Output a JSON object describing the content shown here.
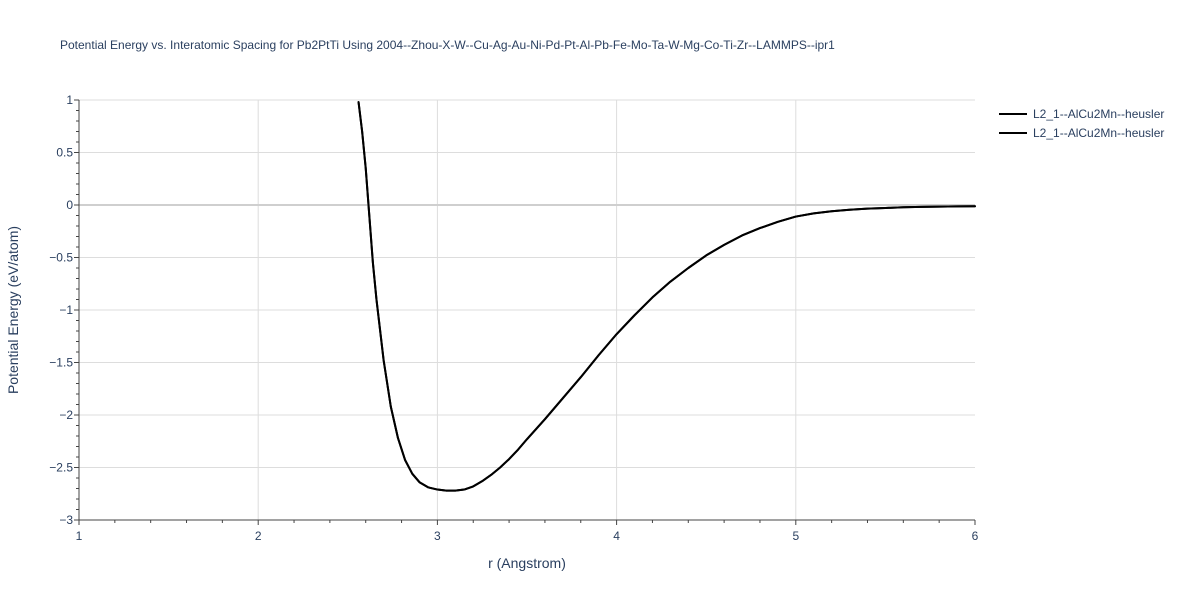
{
  "chart_data": {
    "type": "line",
    "title": "Potential Energy vs. Interatomic Spacing for Pb2PtTi Using 2004--Zhou-X-W--Cu-Ag-Au-Ni-Pd-Pt-Al-Pb-Fe-Mo-Ta-W-Mg-Co-Ti-Zr--LAMMPS--ipr1",
    "xlabel": "r (Angstrom)",
    "ylabel": "Potential Energy (eV/atom)",
    "xlim": [
      1,
      6
    ],
    "ylim": [
      -3,
      1
    ],
    "x_ticks": [
      1,
      2,
      3,
      4,
      5,
      6
    ],
    "y_ticks": [
      -3,
      -2.5,
      -2,
      -1.5,
      -1,
      -0.5,
      0,
      0.5,
      1
    ],
    "x_tick_labels": [
      "1",
      "2",
      "3",
      "4",
      "5",
      "6"
    ],
    "y_tick_labels": [
      "−3",
      "−2.5",
      "−2",
      "−1.5",
      "−1",
      "−0.5",
      "0",
      "0.5",
      "1"
    ],
    "grid": true,
    "legend_position": "top-right",
    "series": [
      {
        "name": "L2_1--AlCu2Mn--heusler",
        "color": "#000000",
        "x": [
          2.56,
          2.58,
          2.6,
          2.62,
          2.64,
          2.66,
          2.7,
          2.74,
          2.78,
          2.82,
          2.86,
          2.9,
          2.95,
          3.0,
          3.05,
          3.1,
          3.15,
          3.2,
          3.25,
          3.3,
          3.35,
          3.4,
          3.45,
          3.5,
          3.6,
          3.7,
          3.8,
          3.9,
          4.0,
          4.1,
          4.2,
          4.3,
          4.4,
          4.5,
          4.6,
          4.7,
          4.8,
          4.9,
          5.0,
          5.1,
          5.2,
          5.3,
          5.4,
          5.5,
          5.6,
          5.7,
          5.8,
          5.9,
          6.0
        ],
        "y": [
          0.98,
          0.7,
          0.35,
          -0.1,
          -0.55,
          -0.9,
          -1.48,
          -1.92,
          -2.22,
          -2.43,
          -2.56,
          -2.64,
          -2.69,
          -2.71,
          -2.72,
          -2.72,
          -2.71,
          -2.68,
          -2.63,
          -2.57,
          -2.5,
          -2.42,
          -2.33,
          -2.23,
          -2.04,
          -1.84,
          -1.64,
          -1.43,
          -1.23,
          -1.05,
          -0.88,
          -0.73,
          -0.6,
          -0.48,
          -0.38,
          -0.29,
          -0.22,
          -0.16,
          -0.11,
          -0.08,
          -0.06,
          -0.045,
          -0.035,
          -0.028,
          -0.022,
          -0.018,
          -0.015,
          -0.013,
          -0.012
        ]
      },
      {
        "name": "L2_1--AlCu2Mn--heusler",
        "color": "#000000",
        "x": [
          2.56,
          2.58,
          2.6,
          2.62,
          2.64,
          2.66,
          2.7,
          2.74,
          2.78,
          2.82,
          2.86,
          2.9,
          2.95,
          3.0,
          3.05,
          3.1,
          3.15,
          3.2,
          3.25,
          3.3,
          3.35,
          3.4,
          3.45,
          3.5,
          3.6,
          3.7,
          3.8,
          3.9,
          4.0,
          4.1,
          4.2,
          4.3,
          4.4,
          4.5,
          4.6,
          4.7,
          4.8,
          4.9,
          5.0,
          5.1,
          5.2,
          5.3,
          5.4,
          5.5,
          5.6,
          5.7,
          5.8,
          5.9,
          6.0
        ],
        "y": [
          0.98,
          0.7,
          0.35,
          -0.1,
          -0.55,
          -0.9,
          -1.48,
          -1.92,
          -2.22,
          -2.43,
          -2.56,
          -2.64,
          -2.69,
          -2.71,
          -2.72,
          -2.72,
          -2.71,
          -2.68,
          -2.63,
          -2.57,
          -2.5,
          -2.42,
          -2.33,
          -2.23,
          -2.04,
          -1.84,
          -1.64,
          -1.43,
          -1.23,
          -1.05,
          -0.88,
          -0.73,
          -0.6,
          -0.48,
          -0.38,
          -0.29,
          -0.22,
          -0.16,
          -0.11,
          -0.08,
          -0.06,
          -0.045,
          -0.035,
          -0.028,
          -0.022,
          -0.018,
          -0.015,
          -0.013,
          -0.012
        ]
      }
    ]
  }
}
